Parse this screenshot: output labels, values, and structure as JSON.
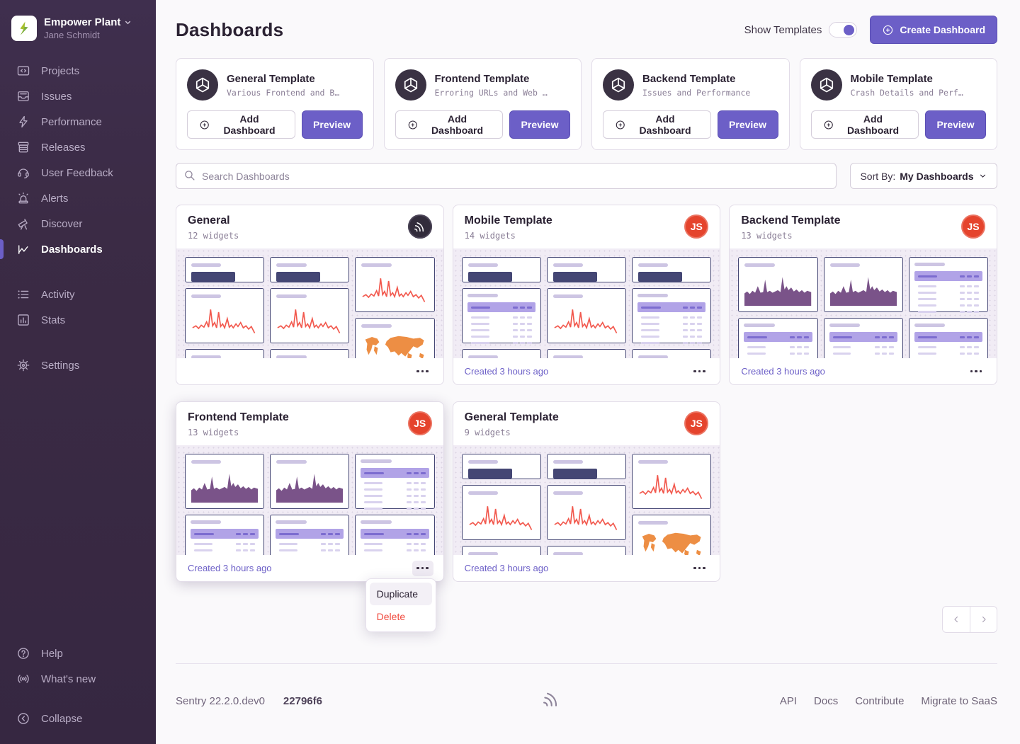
{
  "sidebar": {
    "org": {
      "name": "Empower Plant",
      "user": "Jane Schmidt"
    },
    "items": [
      {
        "label": "Projects",
        "icon": "projects-icon"
      },
      {
        "label": "Issues",
        "icon": "issues-icon"
      },
      {
        "label": "Performance",
        "icon": "performance-icon"
      },
      {
        "label": "Releases",
        "icon": "releases-icon"
      },
      {
        "label": "User Feedback",
        "icon": "user-feedback-icon"
      },
      {
        "label": "Alerts",
        "icon": "alerts-icon"
      },
      {
        "label": "Discover",
        "icon": "discover-icon"
      },
      {
        "label": "Dashboards",
        "icon": "dashboards-icon",
        "active": true
      },
      {
        "label": "Activity",
        "icon": "activity-icon",
        "gap_before": true
      },
      {
        "label": "Stats",
        "icon": "stats-icon"
      },
      {
        "label": "Settings",
        "icon": "settings-icon",
        "gap_before": true
      }
    ],
    "footer_items": [
      {
        "label": "Help",
        "icon": "help-icon"
      },
      {
        "label": "What's new",
        "icon": "broadcast-icon"
      },
      {
        "label": "Collapse",
        "icon": "collapse-icon",
        "gap_before": true
      }
    ]
  },
  "header": {
    "title": "Dashboards",
    "show_templates_label": "Show Templates",
    "toggle_state": "on",
    "create_button_label": "Create Dashboard"
  },
  "templates": [
    {
      "title": "General Template",
      "subtitle": "Various Frontend and Back…",
      "add_label": "Add Dashboard",
      "preview_label": "Preview"
    },
    {
      "title": "Frontend Template",
      "subtitle": "Erroring URLs and Web Vi…",
      "add_label": "Add Dashboard",
      "preview_label": "Preview"
    },
    {
      "title": "Backend Template",
      "subtitle": "Issues and Performance",
      "add_label": "Add Dashboard",
      "preview_label": "Preview"
    },
    {
      "title": "Mobile Template",
      "subtitle": "Crash Details and Perform…",
      "add_label": "Add Dashboard",
      "preview_label": "Preview"
    }
  ],
  "search": {
    "placeholder": "Search Dashboards"
  },
  "sort": {
    "label": "Sort By:",
    "value": "My Dashboards"
  },
  "dashboards": [
    {
      "title": "General",
      "widget_count": "12 widgets",
      "created": "",
      "avatar": {
        "type": "sentry"
      },
      "columns": [
        [
          "big",
          "line",
          "big"
        ],
        [
          "big",
          "line",
          "big"
        ],
        [
          "line",
          "map"
        ]
      ]
    },
    {
      "title": "Mobile Template",
      "widget_count": "14 widgets",
      "created": "Created 3 hours ago",
      "avatar": {
        "type": "user",
        "initials": "JS"
      },
      "columns": [
        [
          "big",
          "table",
          "big"
        ],
        [
          "big",
          "line",
          "big"
        ],
        [
          "big",
          "table",
          "big"
        ]
      ]
    },
    {
      "title": "Backend Template",
      "widget_count": "13 widgets",
      "created": "Created 3 hours ago",
      "avatar": {
        "type": "user",
        "initials": "JS"
      },
      "columns": [
        [
          "area",
          "table"
        ],
        [
          "area",
          "table"
        ],
        [
          "table",
          "table"
        ]
      ]
    },
    {
      "title": "Frontend Template",
      "widget_count": "13 widgets",
      "created": "Created 3 hours ago",
      "avatar": {
        "type": "user",
        "initials": "JS"
      },
      "menu_open": true,
      "columns": [
        [
          "area",
          "table"
        ],
        [
          "area",
          "table"
        ],
        [
          "table",
          "table"
        ]
      ]
    },
    {
      "title": "General Template",
      "widget_count": "9 widgets",
      "created": "Created 3 hours ago",
      "avatar": {
        "type": "user",
        "initials": "JS"
      },
      "columns": [
        [
          "big",
          "line",
          "big"
        ],
        [
          "big",
          "line",
          "big"
        ],
        [
          "line",
          "map"
        ]
      ]
    }
  ],
  "context_menu": {
    "items": [
      {
        "label": "Duplicate",
        "hovered": true
      },
      {
        "label": "Delete",
        "danger": true
      }
    ]
  },
  "footer": {
    "version": "Sentry 22.2.0.dev0",
    "build": "22796f6",
    "links": [
      "API",
      "Docs",
      "Contribute",
      "Migrate to SaaS"
    ]
  },
  "colors": {
    "accent": "#6C5FC7",
    "sidebar": "#3B2B45",
    "navy": "#444674",
    "line_chart": "#F2594E",
    "area_chart": "#7A5389",
    "map": "#ED8E44",
    "table_header": "#B1A3E7",
    "table_header_accent": "#7C6CD0",
    "table_row": "#D9D2EE",
    "title_pill": "#CDC5E3",
    "danger": "#F04A3E",
    "avatar_red": "#E5442D",
    "border": "#E2DCE8"
  }
}
